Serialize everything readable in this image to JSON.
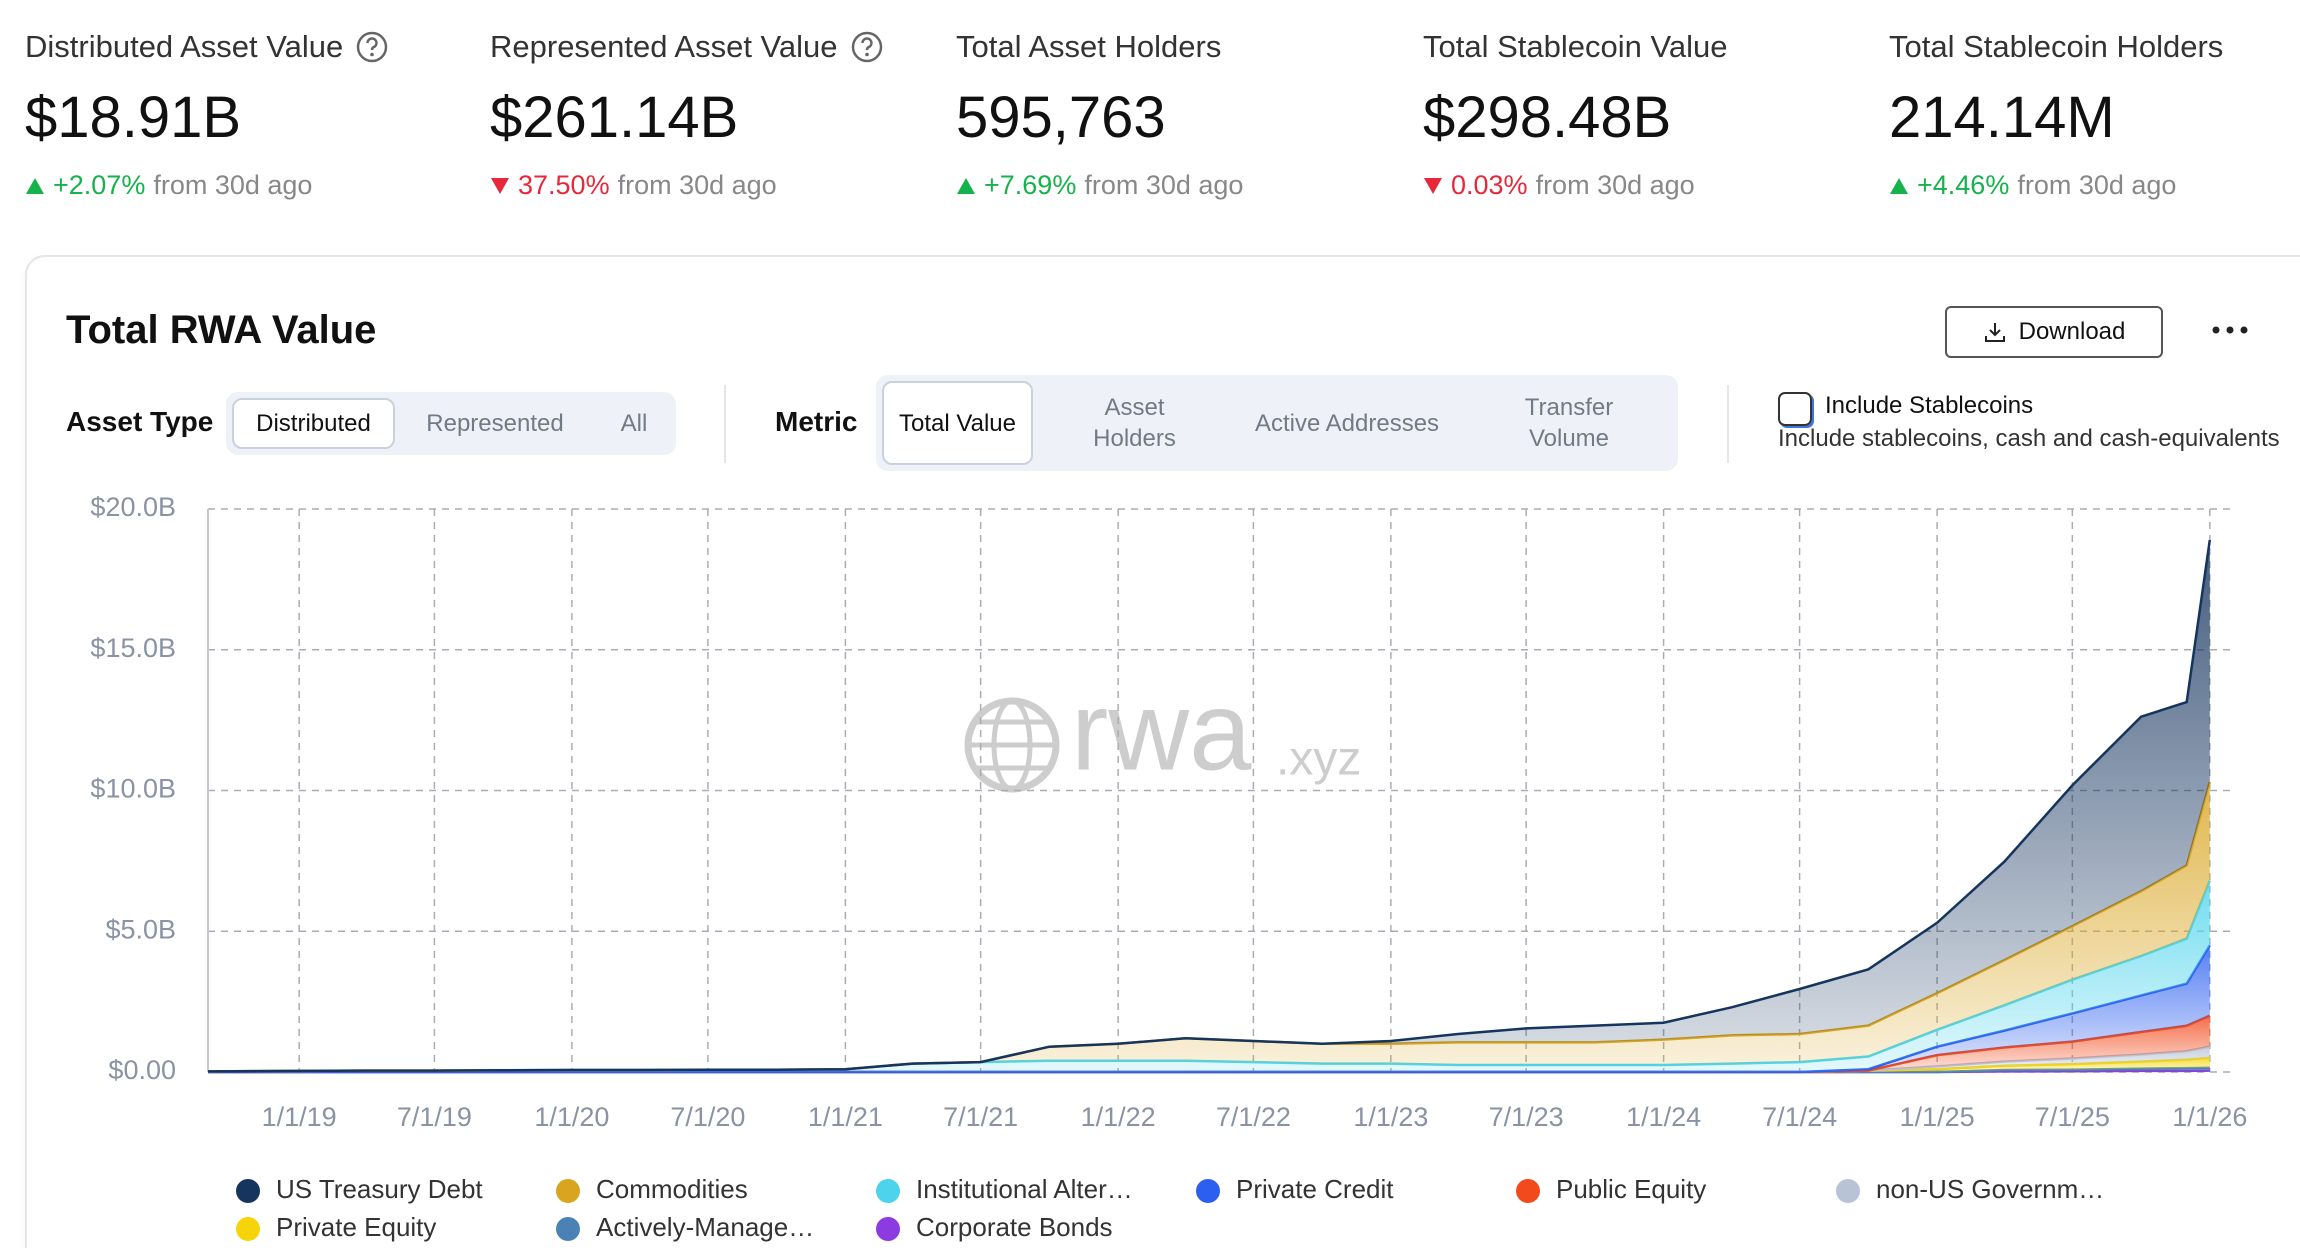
{
  "stats": [
    {
      "label": "Distributed Asset Value",
      "help": true,
      "value": "$18.91B",
      "change": "+2.07%",
      "direction": "up",
      "suffix": "from 30d ago"
    },
    {
      "label": "Represented Asset Value",
      "help": true,
      "value": "$261.14B",
      "change": "37.50%",
      "direction": "down",
      "suffix": "from 30d ago"
    },
    {
      "label": "Total Asset Holders",
      "help": false,
      "value": "595,763",
      "change": "+7.69%",
      "direction": "up",
      "suffix": "from 30d ago"
    },
    {
      "label": "Total Stablecoin Value",
      "help": false,
      "value": "$298.48B",
      "change": "0.03%",
      "direction": "down",
      "suffix": "from 30d ago"
    },
    {
      "label": "Total Stablecoin Holders",
      "help": false,
      "value": "214.14M",
      "change": "+4.46%",
      "direction": "up",
      "suffix": "from 30d ago"
    }
  ],
  "panel": {
    "download": "Download",
    "asset_type": {
      "label": "Asset Type",
      "options": [
        "Distributed",
        "Represented",
        "All"
      ],
      "selected": 0
    },
    "metric": {
      "label": "Metric",
      "options": [
        "Total Value",
        "Asset Holders",
        "Active Addresses",
        "Transfer Volume"
      ],
      "selected": 0
    },
    "stablecoins": {
      "label": "Include Stablecoins",
      "description": "Include stablecoins, cash and cash-equivalents",
      "checked": false
    }
  },
  "watermark": {
    "main": "rwa",
    "suffix": ".xyz"
  },
  "chart_data": {
    "type": "stacked_area",
    "title": "Total RWA Value",
    "x": [
      "9/1/18",
      "1/1/19",
      "4/1/19",
      "7/1/19",
      "10/1/19",
      "1/1/20",
      "4/1/20",
      "7/1/20",
      "10/1/20",
      "1/1/21",
      "4/1/21",
      "7/1/21",
      "10/1/21",
      "1/1/22",
      "4/1/22",
      "7/1/22",
      "10/1/22",
      "1/1/23",
      "4/1/23",
      "7/1/23",
      "10/1/23",
      "1/1/24",
      "4/1/24",
      "7/1/24",
      "10/1/24",
      "1/1/25",
      "4/1/25",
      "7/1/25",
      "10/1/25",
      "12/1/25",
      "1/1/26"
    ],
    "series": [
      {
        "name": "US Treasury Debt",
        "color": "#15345e",
        "values": [
          0,
          0,
          0,
          0,
          0,
          0,
          0,
          0,
          0,
          0,
          0,
          0,
          0,
          0,
          0,
          0,
          0,
          0.1,
          0.3,
          0.5,
          0.6,
          0.6,
          1.0,
          1.6,
          2.0,
          2.5,
          3.5,
          5.0,
          6.2,
          5.8,
          8.6
        ]
      },
      {
        "name": "Commodities",
        "color": "#d9a520",
        "values": [
          0,
          0,
          0,
          0,
          0,
          0,
          0,
          0,
          0,
          0,
          0,
          0,
          0.5,
          0.6,
          0.8,
          0.75,
          0.7,
          0.7,
          0.8,
          0.8,
          0.8,
          0.9,
          1.0,
          1.0,
          1.1,
          1.3,
          1.6,
          1.9,
          2.3,
          2.6,
          3.5
        ]
      },
      {
        "name": "Institutional Alter…",
        "color": "#4dd4ec",
        "values": [
          0.02,
          0.04,
          0.05,
          0.05,
          0.06,
          0.07,
          0.07,
          0.08,
          0.08,
          0.1,
          0.3,
          0.35,
          0.4,
          0.4,
          0.4,
          0.35,
          0.3,
          0.3,
          0.25,
          0.25,
          0.25,
          0.25,
          0.3,
          0.35,
          0.45,
          0.6,
          0.9,
          1.2,
          1.4,
          1.6,
          2.3
        ]
      },
      {
        "name": "Private Credit",
        "color": "#2c5ff0",
        "values": [
          0,
          0,
          0,
          0,
          0,
          0,
          0,
          0,
          0,
          0,
          0,
          0,
          0,
          0,
          0,
          0,
          0,
          0,
          0,
          0,
          0,
          0,
          0,
          0,
          0.05,
          0.3,
          0.6,
          1.0,
          1.3,
          1.5,
          2.5
        ]
      },
      {
        "name": "Public Equity",
        "color": "#f24a1c",
        "values": [
          0,
          0,
          0,
          0,
          0,
          0,
          0,
          0,
          0,
          0,
          0,
          0,
          0,
          0,
          0,
          0,
          0,
          0,
          0,
          0,
          0,
          0,
          0,
          0,
          0,
          0.4,
          0.5,
          0.6,
          0.8,
          0.9,
          1.1
        ]
      },
      {
        "name": "non-US Governm…",
        "color": "#b8c4d6",
        "values": [
          0,
          0,
          0,
          0,
          0,
          0,
          0,
          0,
          0,
          0,
          0,
          0,
          0,
          0,
          0,
          0,
          0,
          0,
          0,
          0,
          0,
          0,
          0,
          0,
          0,
          0.1,
          0.15,
          0.2,
          0.25,
          0.3,
          0.4
        ]
      },
      {
        "name": "Private Equity",
        "color": "#f5d50a",
        "values": [
          0,
          0,
          0,
          0,
          0,
          0,
          0,
          0,
          0,
          0,
          0,
          0,
          0,
          0,
          0,
          0,
          0,
          0,
          0,
          0,
          0,
          0,
          0,
          0,
          0.05,
          0.1,
          0.15,
          0.2,
          0.25,
          0.3,
          0.35
        ]
      },
      {
        "name": "Actively-Manage…",
        "color": "#4a82b6",
        "values": [
          0,
          0,
          0,
          0,
          0,
          0,
          0,
          0,
          0,
          0,
          0,
          0,
          0,
          0,
          0,
          0,
          0,
          0,
          0,
          0,
          0,
          0,
          0,
          0,
          0,
          0,
          0.05,
          0.05,
          0.08,
          0.1,
          0.1
        ]
      },
      {
        "name": "Corporate Bonds",
        "color": "#8b3be0",
        "values": [
          0,
          0,
          0,
          0,
          0,
          0,
          0,
          0,
          0,
          0,
          0,
          0,
          0,
          0,
          0,
          0,
          0,
          0,
          0,
          0,
          0,
          0,
          0,
          0,
          0,
          0,
          0.02,
          0.03,
          0.04,
          0.04,
          0.05
        ]
      }
    ],
    "xlim": [
      "9/1/18",
      "2/1/26"
    ],
    "xticks": [
      "1/1/19",
      "7/1/19",
      "1/1/20",
      "7/1/20",
      "1/1/21",
      "7/1/21",
      "1/1/22",
      "7/1/22",
      "1/1/23",
      "7/1/23",
      "1/1/24",
      "7/1/24",
      "1/1/25",
      "7/1/25",
      "1/1/26"
    ],
    "ylim": [
      0,
      20
    ],
    "yticks": [
      {
        "value": 0,
        "label": "$0.00"
      },
      {
        "value": 5,
        "label": "$5.0B"
      },
      {
        "value": 10,
        "label": "$10.0B"
      },
      {
        "value": 15,
        "label": "$15.0B"
      },
      {
        "value": 20,
        "label": "$20.0B"
      }
    ],
    "grid": true
  }
}
